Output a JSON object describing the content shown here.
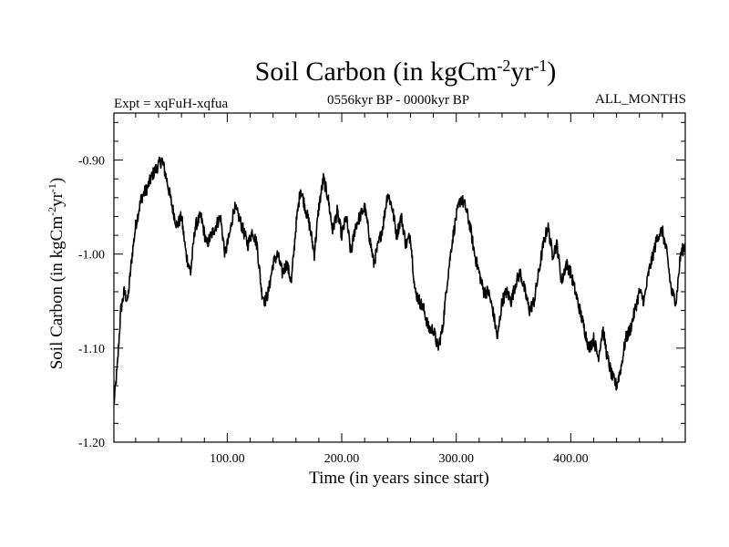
{
  "chart_data": {
    "type": "line",
    "title": {
      "main": "Soil Carbon (in kgCm",
      "sup1": "-2",
      "mid": "yr",
      "sup2": "-1",
      "end": ")"
    },
    "subtitle_left": "Expt = xqFuH-xqfua",
    "subtitle_center": "0556kyr BP - 0000kyr BP",
    "subtitle_right": "ALL_MONTHS",
    "xlabel": "Time (in years since start)",
    "ylabel": {
      "main": "Soil Carbon (in kgCm",
      "sup1": "-2",
      "mid": "yr",
      "sup2": "-1",
      "end": ")"
    },
    "xlim": [
      1,
      500
    ],
    "ylim": [
      -1.2,
      -0.85
    ],
    "xticks": [
      {
        "value": 100,
        "label": "100.00"
      },
      {
        "value": 200,
        "label": "200.00"
      },
      {
        "value": 300,
        "label": "300.00"
      },
      {
        "value": 400,
        "label": "400.00"
      }
    ],
    "yticks": [
      {
        "value": -0.9,
        "label": "-0.90"
      },
      {
        "value": -1.0,
        "label": "-1.00"
      },
      {
        "value": -1.1,
        "label": "-1.10"
      },
      {
        "value": -1.2,
        "label": "-1.20"
      }
    ],
    "series": [
      {
        "name": "Soil Carbon",
        "x": [
          1,
          4,
          7,
          10,
          13,
          17,
          20,
          25,
          30,
          35,
          40,
          43,
          47,
          52,
          56,
          60,
          64,
          68,
          72,
          77,
          82,
          86,
          90,
          94,
          98,
          102,
          106,
          110,
          114,
          118,
          122,
          126,
          130,
          133,
          136,
          140,
          144,
          148,
          152,
          156,
          160,
          164,
          168,
          172,
          176,
          180,
          184,
          188,
          192,
          196,
          200,
          204,
          208,
          212,
          216,
          220,
          224,
          228,
          232,
          236,
          240,
          244,
          248,
          252,
          256,
          260,
          264,
          268,
          272,
          276,
          280,
          284,
          288,
          292,
          296,
          300,
          304,
          308,
          312,
          316,
          320,
          324,
          328,
          332,
          336,
          340,
          344,
          348,
          352,
          356,
          360,
          364,
          368,
          372,
          376,
          380,
          384,
          388,
          392,
          396,
          400,
          404,
          408,
          412,
          416,
          420,
          424,
          428,
          432,
          436,
          440,
          444,
          448,
          452,
          456,
          460,
          464,
          468,
          472,
          476,
          480,
          484,
          488,
          492,
          496,
          500
        ],
        "values": [
          -1.16,
          -1.12,
          -1.06,
          -1.04,
          -1.05,
          -1.0,
          -0.97,
          -0.94,
          -0.93,
          -0.915,
          -0.905,
          -0.9,
          -0.92,
          -0.95,
          -0.97,
          -0.96,
          -1.0,
          -1.02,
          -0.97,
          -0.96,
          -0.99,
          -0.98,
          -0.97,
          -0.96,
          -1.0,
          -0.98,
          -0.95,
          -0.96,
          -0.975,
          -0.99,
          -0.975,
          -0.99,
          -1.04,
          -1.05,
          -1.04,
          -1.01,
          -1.0,
          -1.02,
          -1.01,
          -1.03,
          -0.97,
          -0.93,
          -0.95,
          -0.97,
          -1.0,
          -0.95,
          -0.92,
          -0.94,
          -0.975,
          -0.955,
          -0.98,
          -0.96,
          -1.0,
          -0.97,
          -0.96,
          -0.95,
          -0.98,
          -1.01,
          -0.99,
          -0.97,
          -0.935,
          -0.95,
          -0.98,
          -0.96,
          -0.99,
          -0.98,
          -1.04,
          -1.05,
          -1.06,
          -1.08,
          -1.08,
          -1.1,
          -1.08,
          -1.03,
          -0.99,
          -0.96,
          -0.94,
          -0.95,
          -0.97,
          -1.0,
          -1.02,
          -1.04,
          -1.04,
          -1.06,
          -1.09,
          -1.05,
          -1.04,
          -1.05,
          -1.03,
          -1.02,
          -1.04,
          -1.06,
          -1.05,
          -1.02,
          -0.99,
          -0.97,
          -1.0,
          -0.99,
          -1.03,
          -1.01,
          -1.02,
          -1.04,
          -1.06,
          -1.08,
          -1.1,
          -1.09,
          -1.11,
          -1.08,
          -1.11,
          -1.13,
          -1.14,
          -1.12,
          -1.09,
          -1.08,
          -1.06,
          -1.04,
          -1.05,
          -1.02,
          -1.0,
          -0.98,
          -0.975,
          -1.0,
          -1.04,
          -1.05,
          -1.0,
          -0.99
        ]
      }
    ]
  }
}
